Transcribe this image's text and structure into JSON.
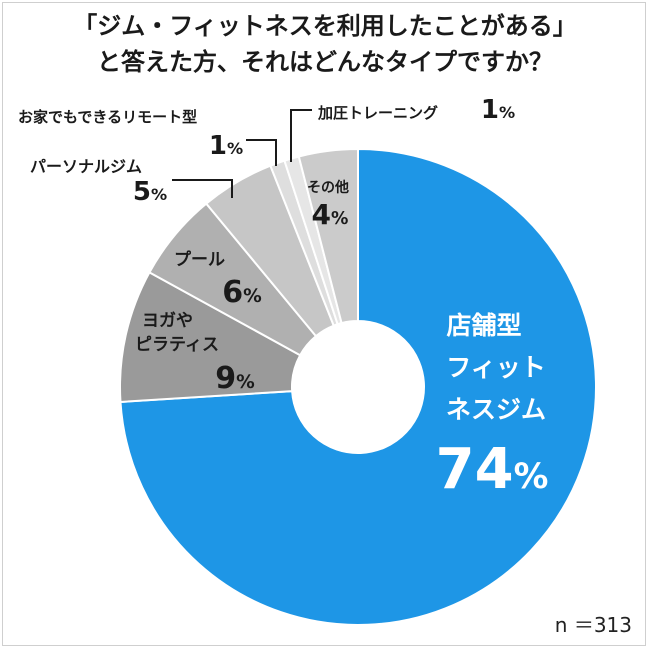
{
  "title": {
    "line1": "「ジム・フィットネスを利用したことがある」",
    "line2": "と答えた方、それはどんなタイプですか？"
  },
  "sample_size": "n ＝313",
  "colors": {
    "main": "#1e96e6",
    "dark_gray": "#9a9a9a",
    "mid_gray": "#b0b0b0",
    "light_gray": "#c6c6c6",
    "pale_gray": "#dedede",
    "pale_gray2": "#e6e6e6",
    "other_gray": "#cbcbcb"
  },
  "chart_data": {
    "type": "pie",
    "title": "「ジム・フィットネスを利用したことがある」と答えた方、それはどんなタイプですか？",
    "unit": "%",
    "slices": [
      {
        "label": "店舗型フィットネスジム",
        "label_lines": [
          "店舗型",
          "フィット",
          "ネスジム"
        ],
        "value": 74,
        "color": "#1e96e6"
      },
      {
        "label": "ヨガやピラティス",
        "label_lines": [
          "ヨガや",
          "ピラティス"
        ],
        "value": 9,
        "color": "#9a9a9a"
      },
      {
        "label": "プール",
        "label_lines": [
          "プール"
        ],
        "value": 6,
        "color": "#b0b0b0"
      },
      {
        "label": "パーソナルジム",
        "label_lines": [
          "パーソナルジム"
        ],
        "value": 5,
        "color": "#c6c6c6"
      },
      {
        "label": "お家でもできるリモート型",
        "label_lines": [
          "お家でもできるリモート型"
        ],
        "value": 1,
        "color": "#dedede"
      },
      {
        "label": "加圧トレーニング",
        "label_lines": [
          "加圧トレーニング"
        ],
        "value": 1,
        "color": "#e6e6e6"
      },
      {
        "label": "その他",
        "label_lines": [
          "その他"
        ],
        "value": 4,
        "color": "#cbcbcb"
      }
    ]
  }
}
